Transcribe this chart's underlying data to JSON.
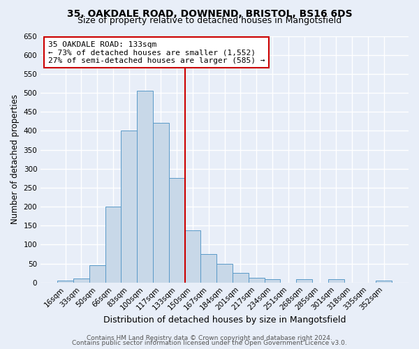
{
  "title1": "35, OAKDALE ROAD, DOWNEND, BRISTOL, BS16 6DS",
  "title2": "Size of property relative to detached houses in Mangotsfield",
  "xlabel": "Distribution of detached houses by size in Mangotsfield",
  "ylabel": "Number of detached properties",
  "bar_labels": [
    "16sqm",
    "33sqm",
    "50sqm",
    "66sqm",
    "83sqm",
    "100sqm",
    "117sqm",
    "133sqm",
    "150sqm",
    "167sqm",
    "184sqm",
    "201sqm",
    "217sqm",
    "234sqm",
    "251sqm",
    "268sqm",
    "285sqm",
    "301sqm",
    "318sqm",
    "335sqm",
    "352sqm"
  ],
  "bar_heights": [
    5,
    10,
    45,
    200,
    400,
    505,
    420,
    275,
    138,
    75,
    50,
    25,
    12,
    8,
    0,
    8,
    0,
    8,
    0,
    0,
    5
  ],
  "bar_color": "#c8d8e8",
  "bar_edge_color": "#5a9ac8",
  "fig_bg_color": "#e8eef8",
  "ax_bg_color": "#e8eef8",
  "grid_color": "#ffffff",
  "vline_color": "#cc0000",
  "vline_x": 7.5,
  "annotation_line1": "35 OAKDALE ROAD: 133sqm",
  "annotation_line2": "← 73% of detached houses are smaller (1,552)",
  "annotation_line3": "27% of semi-detached houses are larger (585) →",
  "annotation_box_color": "#ffffff",
  "annotation_box_edge": "#cc0000",
  "ylim": [
    0,
    650
  ],
  "yticks": [
    0,
    50,
    100,
    150,
    200,
    250,
    300,
    350,
    400,
    450,
    500,
    550,
    600,
    650
  ],
  "footer1": "Contains HM Land Registry data © Crown copyright and database right 2024.",
  "footer2": "Contains public sector information licensed under the Open Government Licence v3.0.",
  "title1_fontsize": 10,
  "title2_fontsize": 9,
  "xlabel_fontsize": 9,
  "ylabel_fontsize": 8.5,
  "tick_fontsize": 7.5,
  "annotation_fontsize": 8,
  "footer_fontsize": 6.5
}
